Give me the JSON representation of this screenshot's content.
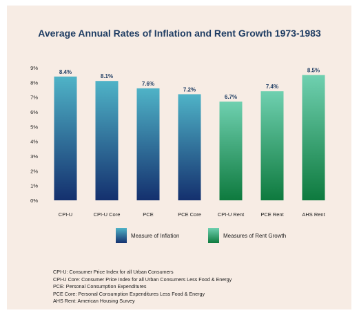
{
  "chart_data": {
    "type": "bar",
    "title": "Average Annual Rates of Inflation and Rent Growth 1973-1983",
    "categories": [
      "CPI-U",
      "CPI-U Core",
      "PCE",
      "PCE Core",
      "CPI-U Rent",
      "PCE Rent",
      "AHS Rent"
    ],
    "values": [
      8.4,
      8.1,
      7.6,
      7.2,
      6.7,
      7.4,
      8.5
    ],
    "value_labels": [
      "8.4%",
      "8.1%",
      "7.6%",
      "7.2%",
      "6.7%",
      "7.4%",
      "8.5%"
    ],
    "groups": [
      "inflation",
      "inflation",
      "inflation",
      "inflation",
      "rent",
      "rent",
      "rent"
    ],
    "ylim": [
      0,
      9
    ],
    "yticks": [
      0,
      1,
      2,
      3,
      4,
      5,
      6,
      7,
      8,
      9
    ],
    "ytick_labels": [
      "0%",
      "1%",
      "2%",
      "3%",
      "4%",
      "5%",
      "6%",
      "7%",
      "8%",
      "9%"
    ],
    "grid": false,
    "legend_position": "bottom",
    "legend": [
      {
        "key": "inflation",
        "label": "Measure of Inflation"
      },
      {
        "key": "rent",
        "label": "Measures of Rent Growth"
      }
    ]
  },
  "colors": {
    "inflation_top": "#4fb3c7",
    "inflation_bottom": "#14306e",
    "rent_top": "#6fd0b0",
    "rent_bottom": "#0e7a3e",
    "title": "#1f3d63",
    "background": "#f7ece4"
  },
  "footnotes": [
    "CPI-U: Consumer Price Index for all Urban Consumers",
    "CPI-U Core: Consumer Price Index for all Urban Consumers Less Food & Energy",
    "PCE: Personal Consumption Expenditures",
    "PCE Core: Personal Consumption Expenditures Less Food & Energy",
    "AHS Rent: American Housing Survey"
  ]
}
